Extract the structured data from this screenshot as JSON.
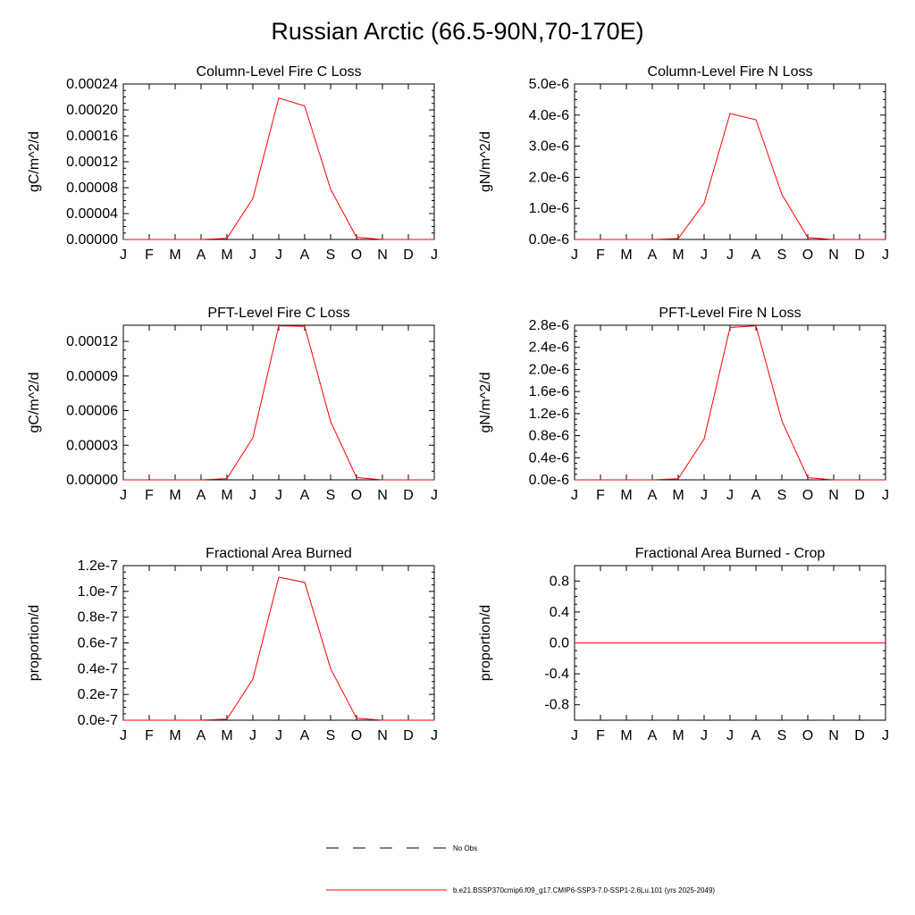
{
  "figure": {
    "title": "Russian Arctic (66.5-90N,70-170E)"
  },
  "legend": {
    "items": [
      {
        "label": "No Obs",
        "style": "dashed",
        "color": "#000000"
      },
      {
        "label": "b.e21.BSSP370cmip6.f09_g17.CMIP6-SSP3-7.0-SSP1-2.6Lu.101 (yrs 2025-2049)",
        "style": "solid",
        "color": "#ff0000"
      }
    ]
  },
  "chart_data": [
    {
      "type": "line",
      "title": "Column-Level Fire C Loss",
      "ylabel": "gC/m^2/d",
      "categories": [
        "J",
        "F",
        "M",
        "A",
        "M",
        "J",
        "J",
        "A",
        "S",
        "O",
        "N",
        "D",
        "J"
      ],
      "ylim": [
        0,
        0.00024
      ],
      "yticks": [
        "0.00000",
        "0.00004",
        "0.00008",
        "0.00012",
        "0.00016",
        "0.00020",
        "0.00024"
      ],
      "series": [
        {
          "color": "#ff0000",
          "values": [
            0,
            0,
            0,
            0,
            1.7e-06,
            6.35e-05,
            0.0002185,
            0.000206,
            7.75e-05,
            3.5e-06,
            0,
            0,
            0
          ]
        }
      ]
    },
    {
      "type": "line",
      "title": "Column-Level Fire N Loss",
      "ylabel": "gN/m^2/d",
      "categories": [
        "J",
        "F",
        "M",
        "A",
        "M",
        "J",
        "J",
        "A",
        "S",
        "O",
        "N",
        "D",
        "J"
      ],
      "ylim": [
        0,
        5e-06
      ],
      "yticks": [
        "0.0e-6",
        "1.0e-6",
        "2.0e-6",
        "3.0e-6",
        "4.0e-6",
        "5.0e-6"
      ],
      "series": [
        {
          "color": "#ff0000",
          "values": [
            0,
            0,
            0,
            0,
            3e-08,
            1.17e-06,
            4.05e-06,
            3.85e-06,
            1.45e-06,
            6e-08,
            0,
            0,
            0
          ]
        }
      ]
    },
    {
      "type": "line",
      "title": "PFT-Level Fire C Loss",
      "ylabel": "gC/m^2/d",
      "categories": [
        "J",
        "F",
        "M",
        "A",
        "M",
        "J",
        "J",
        "A",
        "S",
        "O",
        "N",
        "D",
        "J"
      ],
      "ylim": [
        0,
        0.000134
      ],
      "yticks": [
        "0.00000",
        "0.00003",
        "0.00006",
        "0.00009",
        "0.00012"
      ],
      "series": [
        {
          "color": "#ff0000",
          "values": [
            0,
            0,
            0,
            0,
            1.1e-06,
            3.65e-05,
            0.0001335,
            0.000133,
            5.05e-05,
            2e-06,
            0,
            0,
            0
          ]
        }
      ]
    },
    {
      "type": "line",
      "title": "PFT-Level Fire N Loss",
      "ylabel": "gN/m^2/d",
      "categories": [
        "J",
        "F",
        "M",
        "A",
        "M",
        "J",
        "J",
        "A",
        "S",
        "O",
        "N",
        "D",
        "J"
      ],
      "ylim": [
        0,
        2.8e-06
      ],
      "yticks": [
        "0.0e-6",
        "0.4e-6",
        "0.8e-6",
        "1.2e-6",
        "1.6e-6",
        "2.0e-6",
        "2.4e-6",
        "2.8e-6"
      ],
      "series": [
        {
          "color": "#ff0000",
          "values": [
            0,
            0,
            0,
            0,
            2e-08,
            7.4e-07,
            2.76e-06,
            2.79e-06,
            1.07e-06,
            4e-08,
            0,
            0,
            0
          ]
        }
      ]
    },
    {
      "type": "line",
      "title": "Fractional Area Burned",
      "ylabel": "proportion/d",
      "categories": [
        "J",
        "F",
        "M",
        "A",
        "M",
        "J",
        "J",
        "A",
        "S",
        "O",
        "N",
        "D",
        "J"
      ],
      "ylim": [
        0,
        1.2e-07
      ],
      "yticks": [
        "0.0e-7",
        "0.2e-7",
        "0.4e-7",
        "0.6e-7",
        "0.8e-7",
        "1.0e-7",
        "1.2e-7"
      ],
      "series": [
        {
          "color": "#ff0000",
          "values": [
            0,
            0,
            0,
            0,
            8e-10,
            3.2e-08,
            1.11e-07,
            1.07e-07,
            4e-08,
            1.5e-09,
            0,
            0,
            0
          ]
        }
      ]
    },
    {
      "type": "line",
      "title": "Fractional Area Burned - Crop",
      "ylabel": "proportion/d",
      "categories": [
        "J",
        "F",
        "M",
        "A",
        "M",
        "J",
        "J",
        "A",
        "S",
        "O",
        "N",
        "D",
        "J"
      ],
      "ylim": [
        -1.0,
        1.0
      ],
      "yticks": [
        "-0.8",
        "-0.4",
        "0.0",
        "0.4",
        "0.8"
      ],
      "series": [
        {
          "color": "#ff0000",
          "values": [
            0,
            0,
            0,
            0,
            0,
            0,
            0,
            0,
            0,
            0,
            0,
            0,
            0
          ]
        }
      ]
    }
  ]
}
